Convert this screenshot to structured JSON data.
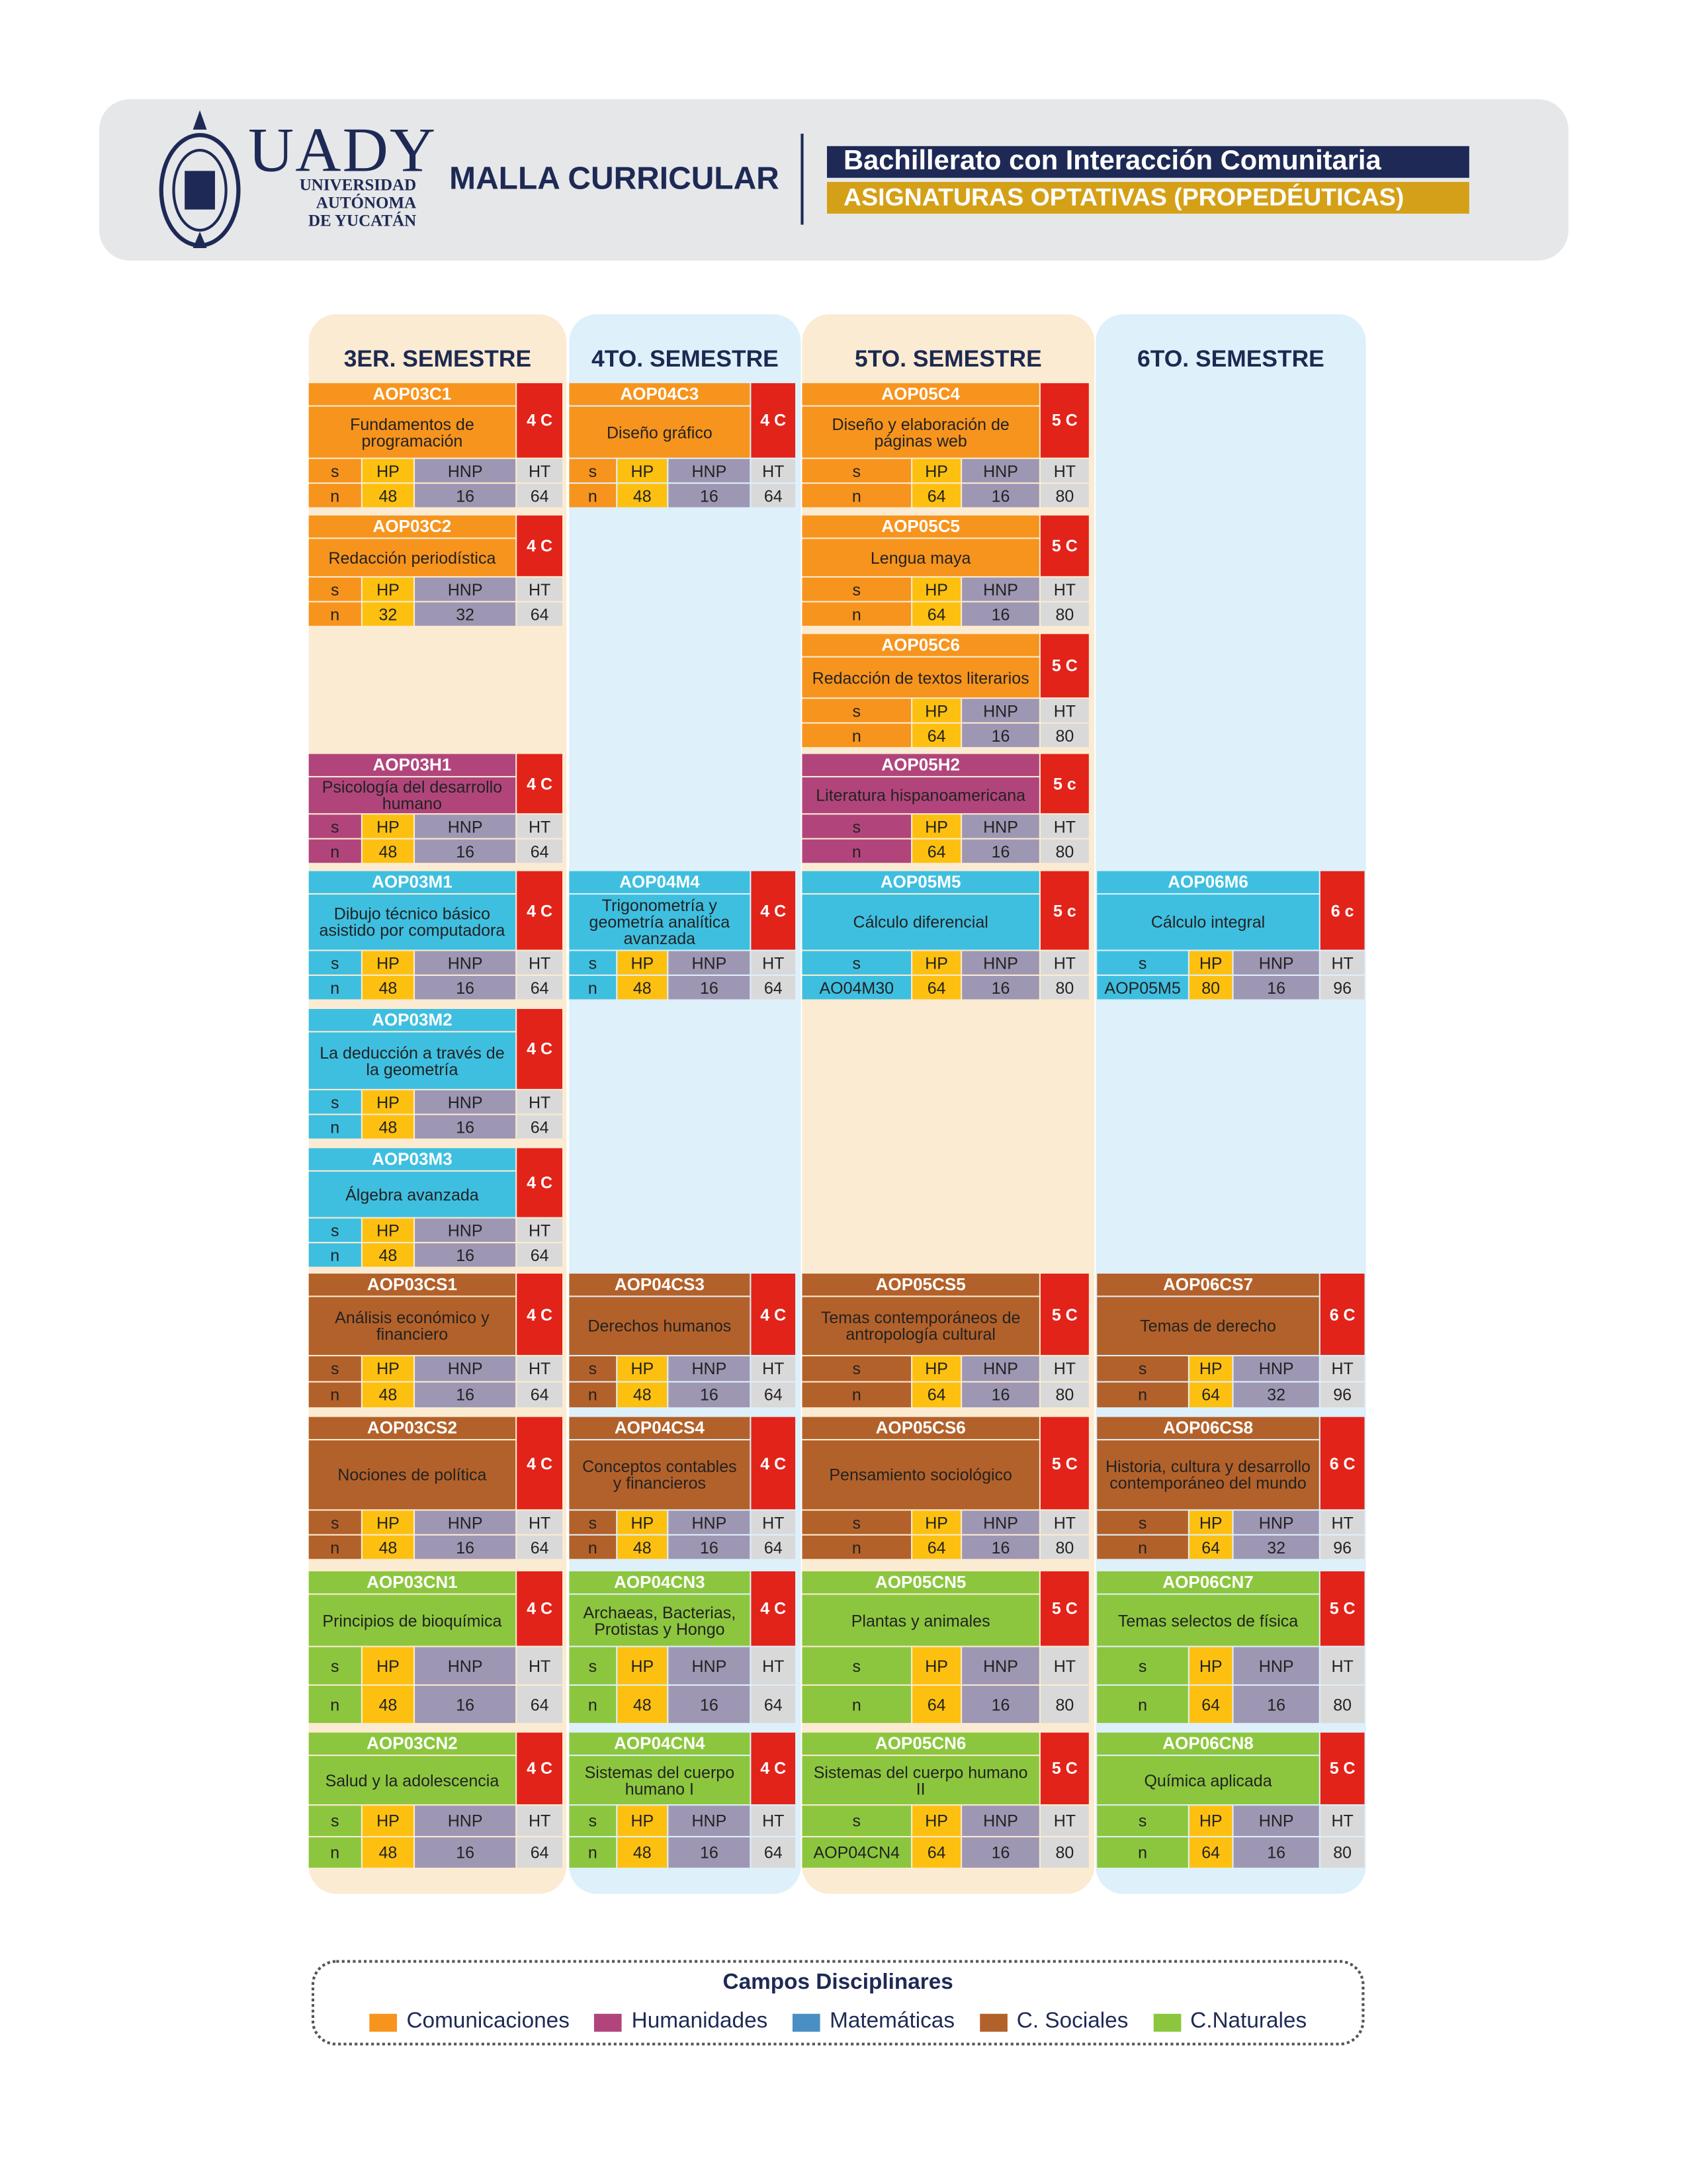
{
  "header": {
    "brand": "UADY",
    "university": [
      "UNIVERSIDAD",
      "AUTÓNOMA",
      "DE YUCATÁN"
    ],
    "title": "MALLA CURRICULAR",
    "program": "Bachillerato con Interacción Comunitaria",
    "subtitle": "ASIGNATURAS OPTATIVAS (PROPEDÉUTICAS)"
  },
  "semesters": [
    {
      "title": "3ER. SEMESTRE",
      "courses": [
        {
          "code": "AOP03C1",
          "name": "Fundamentos de programación",
          "credits": "4 C",
          "color": "#f7941d",
          "s": [
            "s",
            "HP",
            "HNP",
            "HT"
          ],
          "n": [
            "n",
            48,
            16,
            64
          ]
        },
        {
          "code": "AOP03C2",
          "name": "Redacción periodística",
          "credits": "4 C",
          "color": "#f7941d",
          "s": [
            "s",
            "HP",
            "HNP",
            "HT"
          ],
          "n": [
            "n",
            32,
            32,
            64
          ]
        },
        {
          "code": "AOP03H1",
          "name": "Psicología del desarrollo humano",
          "credits": "4 C",
          "color": "#b1457b",
          "s": [
            "s",
            "HP",
            "HNP",
            "HT"
          ],
          "n": [
            "n",
            48,
            16,
            64
          ]
        },
        {
          "code": "AOP03M1",
          "name": "Dibujo técnico básico asistido por computadora",
          "credits": "4 C",
          "color": "#3ebfe0",
          "s": [
            "s",
            "HP",
            "HNP",
            "HT"
          ],
          "n": [
            "n",
            48,
            16,
            64
          ]
        },
        {
          "code": "AOP03M2",
          "name": "La deducción a través de la geometría",
          "credits": "4 C",
          "color": "#3ebfe0",
          "s": [
            "s",
            "HP",
            "HNP",
            "HT"
          ],
          "n": [
            "n",
            48,
            16,
            64
          ]
        },
        {
          "code": "AOP03M3",
          "name": "Álgebra avanzada",
          "credits": "4 C",
          "color": "#3ebfe0",
          "s": [
            "s",
            "HP",
            "HNP",
            "HT"
          ],
          "n": [
            "n",
            48,
            16,
            64
          ]
        },
        {
          "code": "AOP03CS1",
          "name": "Análisis económico y financiero",
          "credits": "4 C",
          "color": "#b3612a",
          "s": [
            "s",
            "HP",
            "HNP",
            "HT"
          ],
          "n": [
            "n",
            48,
            16,
            64
          ]
        },
        {
          "code": "AOP03CS2",
          "name": "Nociones de política",
          "credits": "4 C",
          "color": "#b3612a",
          "s": [
            "s",
            "HP",
            "HNP",
            "HT"
          ],
          "n": [
            "n",
            48,
            16,
            64
          ]
        },
        {
          "code": "AOP03CN1",
          "name": "Principios de bioquímica",
          "credits": "4 C",
          "color": "#8cc63e",
          "s": [
            "s",
            "HP",
            "HNP",
            "HT"
          ],
          "n": [
            "n",
            48,
            16,
            64
          ]
        },
        {
          "code": "AOP03CN2",
          "name": "Salud y la adolescencia",
          "credits": "4 C",
          "color": "#8cc63e",
          "s": [
            "s",
            "HP",
            "HNP",
            "HT"
          ],
          "n": [
            "n",
            48,
            16,
            64
          ]
        }
      ]
    },
    {
      "title": "4TO. SEMESTRE",
      "courses": [
        {
          "code": "AOP04C3",
          "name": "Diseño gráfico",
          "credits": "4 C",
          "color": "#f7941d",
          "s": [
            "s",
            "HP",
            "HNP",
            "HT"
          ],
          "n": [
            "n",
            48,
            16,
            64
          ]
        },
        {
          "code": "AOP04M4",
          "name": "Trigonometría y geometría analítica avanzada",
          "credits": "4 C",
          "color": "#3ebfe0",
          "s": [
            "s",
            "HP",
            "HNP",
            "HT"
          ],
          "n": [
            "n",
            48,
            16,
            64
          ]
        },
        {
          "code": "AOP04CS3",
          "name": "Derechos humanos",
          "credits": "4 C",
          "color": "#b3612a",
          "s": [
            "s",
            "HP",
            "HNP",
            "HT"
          ],
          "n": [
            "n",
            48,
            16,
            64
          ]
        },
        {
          "code": "AOP04CS4",
          "name": "Conceptos contables y financieros",
          "credits": "4 C",
          "color": "#b3612a",
          "s": [
            "s",
            "HP",
            "HNP",
            "HT"
          ],
          "n": [
            "n",
            48,
            16,
            64
          ]
        },
        {
          "code": "AOP04CN3",
          "name": "Archaeas, Bacterias, Protistas y Hongo",
          "credits": "4 C",
          "color": "#8cc63e",
          "s": [
            "s",
            "HP",
            "HNP",
            "HT"
          ],
          "n": [
            "n",
            48,
            16,
            64
          ]
        },
        {
          "code": "AOP04CN4",
          "name": "Sistemas del cuerpo humano I",
          "credits": "4 C",
          "color": "#8cc63e",
          "s": [
            "s",
            "HP",
            "HNP",
            "HT"
          ],
          "n": [
            "n",
            48,
            16,
            64
          ]
        }
      ]
    },
    {
      "title": "5TO. SEMESTRE",
      "courses": [
        {
          "code": "AOP05C4",
          "name": "Diseño y elaboración de páginas web",
          "credits": "5 C",
          "color": "#f7941d",
          "s": [
            "s",
            "HP",
            "HNP",
            "HT"
          ],
          "n": [
            "n",
            64,
            16,
            80
          ]
        },
        {
          "code": "AOP05C5",
          "name": "Lengua maya",
          "credits": "5 C",
          "color": "#f7941d",
          "s": [
            "s",
            "HP",
            "HNP",
            "HT"
          ],
          "n": [
            "n",
            64,
            16,
            80
          ]
        },
        {
          "code": "AOP05C6",
          "name": "Redacción de textos literarios",
          "credits": "5 C",
          "color": "#f7941d",
          "s": [
            "s",
            "HP",
            "HNP",
            "HT"
          ],
          "n": [
            "n",
            64,
            16,
            80
          ]
        },
        {
          "code": "AOP05H2",
          "name": "Literatura hispanoamericana",
          "credits": "5 c",
          "color": "#b1457b",
          "s": [
            "s",
            "HP",
            "HNP",
            "HT"
          ],
          "n": [
            "n",
            64,
            16,
            80
          ]
        },
        {
          "code": "AOP05M5",
          "name": "Cálculo diferencial",
          "credits": "5 c",
          "color": "#3ebfe0",
          "s": [
            "s",
            "HP",
            "HNP",
            "HT"
          ],
          "n": [
            "AO04M30",
            64,
            16,
            80
          ]
        },
        {
          "code": "AOP05CS5",
          "name": "Temas contemporáneos de antropología cultural",
          "credits": "5 C",
          "color": "#b3612a",
          "s": [
            "s",
            "HP",
            "HNP",
            "HT"
          ],
          "n": [
            "n",
            64,
            16,
            80
          ]
        },
        {
          "code": "AOP05CS6",
          "name": "Pensamiento sociológico",
          "credits": "5 C",
          "color": "#b3612a",
          "s": [
            "s",
            "HP",
            "HNP",
            "HT"
          ],
          "n": [
            "n",
            64,
            16,
            80
          ]
        },
        {
          "code": "AOP05CN5",
          "name": "Plantas y animales",
          "credits": "5 C",
          "color": "#8cc63e",
          "s": [
            "s",
            "HP",
            "HNP",
            "HT"
          ],
          "n": [
            "n",
            64,
            16,
            80
          ]
        },
        {
          "code": "AOP05CN6",
          "name": "Sistemas del cuerpo humano II",
          "credits": "5 C",
          "color": "#8cc63e",
          "s": [
            "s",
            "HP",
            "HNP",
            "HT"
          ],
          "n": [
            "AOP04CN4",
            64,
            16,
            80
          ]
        }
      ]
    },
    {
      "title": "6TO. SEMESTRE",
      "courses": [
        {
          "code": "AOP06M6",
          "name": "Cálculo integral",
          "credits": "6 c",
          "color": "#3ebfe0",
          "s": [
            "s",
            "HP",
            "HNP",
            "HT"
          ],
          "n": [
            "AOP05M5",
            80,
            16,
            96
          ]
        },
        {
          "code": "AOP06CS7",
          "name": "Temas de derecho",
          "credits": "6 C",
          "color": "#b3612a",
          "s": [
            "s",
            "HP",
            "HNP",
            "HT"
          ],
          "n": [
            "n",
            64,
            32,
            96
          ]
        },
        {
          "code": "AOP06CS8",
          "name": "Historia, cultura y desarrollo contemporáneo del mundo",
          "credits": "6 C",
          "color": "#b3612a",
          "s": [
            "s",
            "HP",
            "HNP",
            "HT"
          ],
          "n": [
            "n",
            64,
            32,
            96
          ]
        },
        {
          "code": "AOP06CN7",
          "name": "Temas selectos de física",
          "credits": "5 C",
          "color": "#8cc63e",
          "s": [
            "s",
            "HP",
            "HNP",
            "HT"
          ],
          "n": [
            "n",
            64,
            16,
            80
          ]
        },
        {
          "code": "AOP06CN8",
          "name": "Química aplicada",
          "credits": "5 C",
          "color": "#8cc63e",
          "s": [
            "s",
            "HP",
            "HNP",
            "HT"
          ],
          "n": [
            "n",
            64,
            16,
            80
          ]
        }
      ]
    }
  ],
  "legend": {
    "title": "Campos Disciplinares",
    "items": [
      {
        "name": "Comunicaciones",
        "color": "#f7941d"
      },
      {
        "name": "Humanidades",
        "color": "#b1457b"
      },
      {
        "name": "Matemáticas",
        "color": "#4a8fc4"
      },
      {
        "name": "C. Sociales",
        "color": "#b3612a"
      },
      {
        "name": "C.Naturales",
        "color": "#8cc63e"
      }
    ]
  }
}
